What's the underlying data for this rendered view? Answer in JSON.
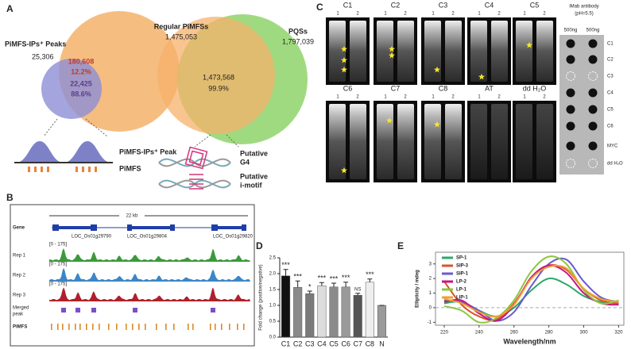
{
  "panel_a": {
    "label": "A",
    "left_set": "PiMFS-IPs⁺ Peaks",
    "left_count": "25,306",
    "regular_set": "Regular PiMFSs",
    "regular_count": "1,475,053",
    "pqs_set": "PQSs",
    "pqs_count": "1,797,039",
    "overlap1_count": "180,608",
    "overlap1_pct": "12.2%",
    "overlap1b_count": "22,425",
    "overlap1b_pct": "88.6%",
    "overlap2_count": "1,473,568",
    "overlap2_pct": "99.9%",
    "peak_label": "PiMFS-IPs⁺ Peak",
    "pimfs_label": "PiMFS",
    "g4_label": [
      "Putative",
      "G4"
    ],
    "imotif_label": [
      "Putative",
      "i-motif"
    ]
  },
  "panel_b": {
    "label": "B",
    "scale": "22 kb",
    "gene_track": "Gene",
    "loci": [
      "LOC_Os01g29790",
      "LOC_Os01g29804",
      "LOC_Os01g29820"
    ],
    "tracks": [
      "Rep 1",
      "Rep 2",
      "Rep 3"
    ],
    "range": "[0 - 175]",
    "merged": [
      "Merged",
      "peak"
    ],
    "pimfs": "PiMFS"
  },
  "panel_c": {
    "label": "C",
    "gels_top": [
      "C1",
      "C2",
      "C3",
      "C4",
      "C5"
    ],
    "gels_bottom": [
      "C6",
      "C7",
      "C8",
      "AT",
      "dd H₂O"
    ],
    "lanes": [
      "1",
      "2"
    ],
    "antibody": [
      "iMab antibody",
      "(pH=5.5)"
    ],
    "amount": "500ng",
    "dot_rows": [
      "C1",
      "C2",
      "C3",
      "C4",
      "C5",
      "C6",
      "MYC",
      "dd H₂O"
    ]
  },
  "chart_data": [
    {
      "type": "bar",
      "label": "D",
      "y_label": "Fold change (positive/negative)",
      "categories": [
        "C1",
        "C2",
        "C3",
        "C4",
        "C5",
        "C6",
        "C7",
        "C8",
        "N"
      ],
      "values": [
        1.93,
        1.57,
        1.37,
        1.62,
        1.58,
        1.58,
        1.32,
        1.73,
        1.0
      ],
      "errors": [
        0.2,
        0.2,
        0.08,
        0.1,
        0.12,
        0.15,
        0.06,
        0.1,
        0
      ],
      "annotations": [
        "***",
        "***",
        "*",
        "***",
        "***",
        "***",
        "NS",
        "***",
        null
      ],
      "colors": [
        "#111111",
        "#8a8a8a",
        "#7a7a7a",
        "#dcdcdc",
        "#8a8a8a",
        "#9a9a9a",
        "#555555",
        "#eeeeee",
        "#9a9a9a"
      ],
      "ylim": [
        0,
        2.5
      ],
      "yticks": [
        {
          "value": 0,
          "label": "0.0"
        },
        0.5,
        {
          "value": 1,
          "label": "1.0"
        },
        1.5,
        {
          "value": 2,
          "label": "2.0"
        },
        2.5
      ]
    },
    {
      "type": "line",
      "label": "E",
      "x_label": "Wavelength/nm",
      "y_label": "Ellipticity / mdeg",
      "x": [
        220,
        230,
        240,
        250,
        260,
        270,
        280,
        290,
        300,
        310,
        320
      ],
      "series": [
        {
          "name": "SP-1",
          "color": "#2fa86b",
          "values": [
            0.3,
            0.4,
            -0.2,
            -0.6,
            0,
            1.2,
            2.0,
            1.6,
            0.8,
            0.4,
            0.3
          ]
        },
        {
          "name": "SIP-3",
          "color": "#d9552a",
          "values": [
            1.8,
            0.2,
            -0.6,
            -0.8,
            0.3,
            2.0,
            2.9,
            2.6,
            1.3,
            0.5,
            0.3
          ]
        },
        {
          "name": "SIP-1",
          "color": "#6a5acd",
          "values": [
            0.5,
            0.4,
            -0.2,
            -0.9,
            -0.3,
            1.5,
            3.0,
            3.3,
            1.8,
            0.7,
            0.4
          ]
        },
        {
          "name": "LP-2",
          "color": "#c71585",
          "values": [
            0.4,
            0.5,
            -0.4,
            -0.9,
            0.2,
            2.1,
            2.9,
            2.4,
            1.0,
            0.3,
            0.2
          ]
        },
        {
          "name": "LP-1",
          "color": "#8dc63f",
          "values": [
            0.1,
            -0.2,
            -1.0,
            -0.7,
            0.5,
            2.5,
            3.5,
            3.0,
            1.2,
            0.3,
            0.5
          ]
        },
        {
          "name": "LIP-1",
          "color": "#f0a030",
          "values": [
            0.6,
            0.3,
            -0.3,
            -0.6,
            0.2,
            2.0,
            2.8,
            2.7,
            1.3,
            0.6,
            0.4
          ]
        }
      ],
      "xlim": [
        215,
        323
      ],
      "xticks": [
        220,
        240,
        260,
        280,
        300,
        320
      ],
      "ylim": [
        -1.2,
        3.8
      ],
      "yticks": [
        -1,
        0,
        1,
        2,
        3
      ]
    }
  ]
}
